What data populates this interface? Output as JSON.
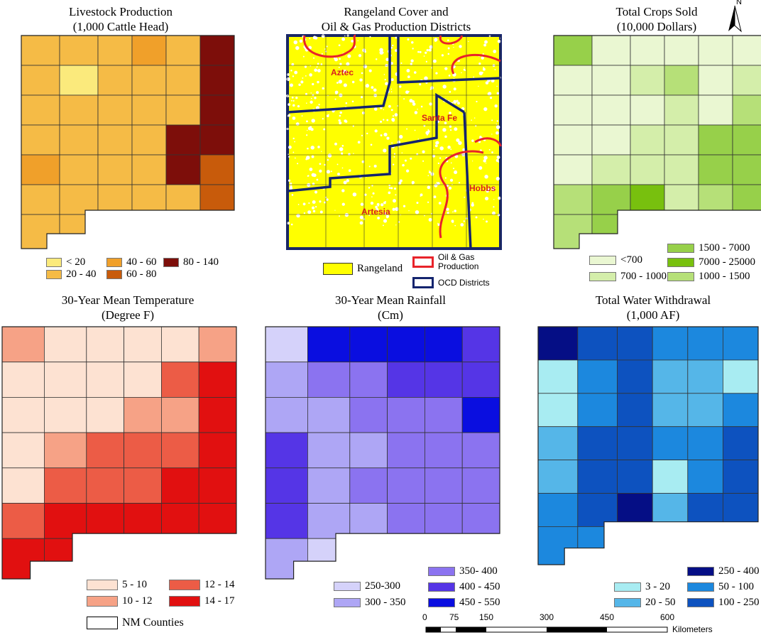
{
  "maps": {
    "livestock": {
      "title1": "Livestock Production",
      "title2": "(1,000 Cattle Head)",
      "legend": [
        {
          "label": "< 20",
          "color": "#fbea7c"
        },
        {
          "label": "20 - 40",
          "color": "#f5bb46"
        },
        {
          "label": "40 - 60",
          "color": "#f0a02a"
        },
        {
          "label": "60 - 80",
          "color": "#c85b0b"
        },
        {
          "label": "80 - 140",
          "color": "#7d0e0a"
        }
      ]
    },
    "rangeland": {
      "title1": "Rangeland Cover and",
      "title2": "Oil & Gas Production Districts",
      "district_labels": [
        "Aztec",
        "Santa Fe",
        "Hobbs",
        "Artesia"
      ],
      "legend": {
        "rangeland": {
          "label": "Rangeland",
          "color": "#ffff00"
        },
        "oilgas": {
          "label1": "Oil & Gas",
          "label2": "Production",
          "color": "#e8232a"
        },
        "ocd": {
          "label": "OCD Districts",
          "color": "#14246e"
        }
      }
    },
    "crops": {
      "title1": "Total Crops Sold",
      "title2": "(10,000 Dollars)",
      "legend": [
        {
          "label": "<700",
          "color": "#eaf7d2"
        },
        {
          "label": "700 - 1000",
          "color": "#d4eeaa"
        },
        {
          "label": "1000 - 1500",
          "color": "#b6e078"
        },
        {
          "label": "1500 - 7000",
          "color": "#97d04a"
        },
        {
          "label": "7000 - 25000",
          "color": "#78c00e"
        }
      ]
    },
    "temperature": {
      "title1": "30-Year Mean Temperature",
      "title2": "(Degree F)",
      "legend": [
        {
          "label": "5 - 10",
          "color": "#fde2d2"
        },
        {
          "label": "10 - 12",
          "color": "#f6a286"
        },
        {
          "label": "12 - 14",
          "color": "#ec5c46"
        },
        {
          "label": "14 - 17",
          "color": "#e11010"
        }
      ]
    },
    "rainfall": {
      "title1": "30-Year Mean Rainfall",
      "title2": "(Cm)",
      "legend": [
        {
          "label": "250-300",
          "color": "#d5d2fa"
        },
        {
          "label": "300 - 350",
          "color": "#aea6f5"
        },
        {
          "label": "350- 400",
          "color": "#8b73f0"
        },
        {
          "label": "400 - 450",
          "color": "#5535e6"
        },
        {
          "label": "450 - 550",
          "color": "#0a0ee0"
        }
      ]
    },
    "water": {
      "title1": "Total Water Withdrawal",
      "title2": "(1,000 AF)",
      "legend": [
        {
          "label": "3 - 20",
          "color": "#a8ecf2"
        },
        {
          "label": "20 - 50",
          "color": "#55b6e8"
        },
        {
          "label": "50 - 100",
          "color": "#1c88de"
        },
        {
          "label": "100 - 250",
          "color": "#0d52bf"
        },
        {
          "label": "250 - 400",
          "color": "#050e85"
        }
      ]
    }
  },
  "nm_counties_label": "NM Counties",
  "north_label": "N",
  "scalebar": {
    "ticks": [
      "0",
      "75",
      "150",
      "300",
      "450",
      "600"
    ],
    "unit": "Kilometers"
  }
}
